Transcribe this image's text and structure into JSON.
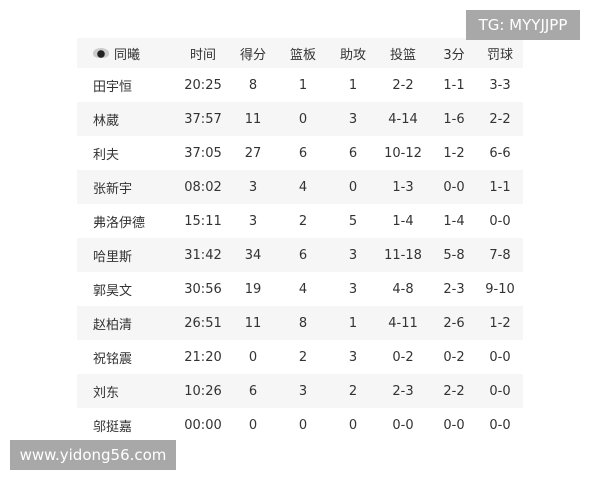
{
  "table": {
    "team_logo": "team-logo-icon",
    "headers": [
      "同曦",
      "时间",
      "得分",
      "篮板",
      "助攻",
      "投篮",
      "3分",
      "罚球"
    ],
    "rows": [
      [
        "田宇恒",
        "20:25",
        "8",
        "1",
        "1",
        "2-2",
        "1-1",
        "3-3"
      ],
      [
        "林葳",
        "37:57",
        "11",
        "0",
        "3",
        "4-14",
        "1-6",
        "2-2"
      ],
      [
        "利夫",
        "37:05",
        "27",
        "6",
        "6",
        "10-12",
        "1-2",
        "6-6"
      ],
      [
        "张新宇",
        "08:02",
        "3",
        "4",
        "0",
        "1-3",
        "0-0",
        "1-1"
      ],
      [
        "弗洛伊德",
        "15:11",
        "3",
        "2",
        "5",
        "1-4",
        "1-4",
        "0-0"
      ],
      [
        "哈里斯",
        "31:42",
        "34",
        "6",
        "3",
        "11-18",
        "5-8",
        "7-8"
      ],
      [
        "郭昊文",
        "30:56",
        "19",
        "4",
        "3",
        "4-8",
        "2-3",
        "9-10"
      ],
      [
        "赵柏清",
        "26:51",
        "11",
        "8",
        "1",
        "4-11",
        "2-6",
        "1-2"
      ],
      [
        "祝铭震",
        "21:20",
        "0",
        "2",
        "3",
        "0-2",
        "0-2",
        "0-0"
      ],
      [
        "刘东",
        "10:26",
        "6",
        "3",
        "2",
        "2-3",
        "2-2",
        "0-0"
      ],
      [
        "邬挺嘉",
        "00:00",
        "0",
        "0",
        "0",
        "0-0",
        "0-0",
        "0-0"
      ]
    ]
  },
  "watermarks": {
    "top_right": "TG: MYYJJPP",
    "bottom_left": "www.yidong56.com"
  }
}
